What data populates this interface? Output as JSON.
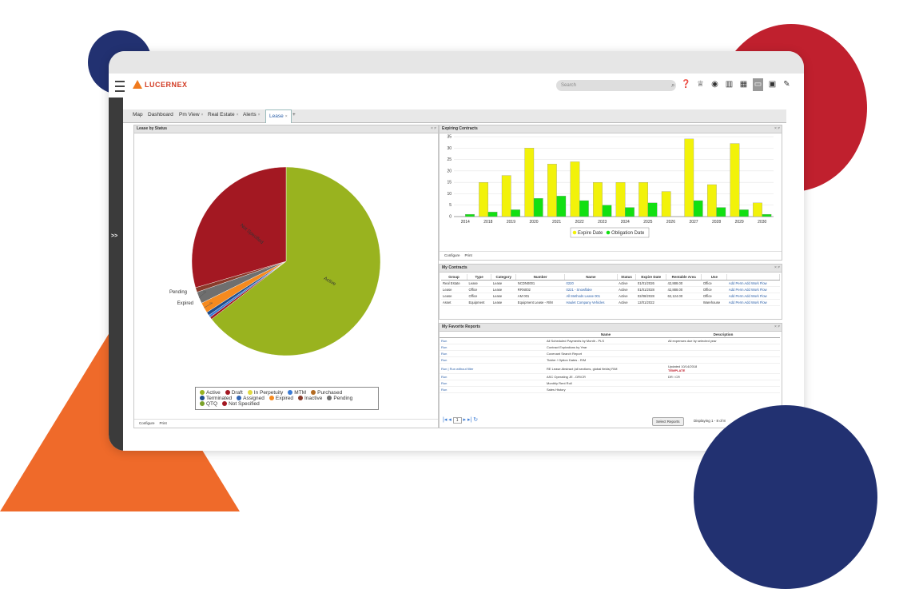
{
  "app": {
    "logo_text": "LUCERNEX",
    "search_placeholder": "Search",
    "top_letter": "L",
    "expand_label": ">>"
  },
  "tabs": [
    {
      "label": "Map"
    },
    {
      "label": "Dashboard"
    },
    {
      "label": "Pm View",
      "close": "×"
    },
    {
      "label": "Real Estate",
      "close": "×"
    },
    {
      "label": "Alerts",
      "close": "×"
    },
    {
      "label": "Lease",
      "close": "×"
    },
    {
      "label": "+"
    }
  ],
  "lease_by_status": {
    "title": "Lease by Status",
    "controls": "× ≠",
    "footer": {
      "configure": "Configure",
      "print": "Print"
    },
    "legend": [
      {
        "name": "Active",
        "color": "#99b31f"
      },
      {
        "name": "Draft",
        "color": "#a31822"
      },
      {
        "name": "In Perpetuity",
        "color": "#e0d940"
      },
      {
        "name": "MTM",
        "color": "#3a7bd5"
      },
      {
        "name": "Purchased",
        "color": "#b36b23"
      },
      {
        "name": "Terminated",
        "color": "#1f4e8c"
      },
      {
        "name": "Assigned",
        "color": "#3065b5"
      },
      {
        "name": "Expired",
        "color": "#f58a1f"
      },
      {
        "name": "Inactive",
        "color": "#8a3a2a"
      },
      {
        "name": "Pending",
        "color": "#6f6f6f"
      },
      {
        "name": "QTQ",
        "color": "#7aa12a"
      },
      {
        "name": "Not Specified",
        "color": "#a31822"
      }
    ],
    "slice_labels": {
      "active": "Active",
      "not_specified": "Not Specified",
      "pending": "Pending",
      "expired": "Expired"
    }
  },
  "chart_data": {
    "type": "pie",
    "title": "Lease by Status",
    "slices": [
      {
        "label": "Active",
        "value": 64.5,
        "color": "#99b31f"
      },
      {
        "label": "Draft",
        "value": 0.4,
        "color": "#a31822"
      },
      {
        "label": "MTM",
        "value": 0.4,
        "color": "#3a7bd5"
      },
      {
        "label": "Terminated",
        "value": 0.6,
        "color": "#1f4e8c"
      },
      {
        "label": "Expired",
        "value": 1.8,
        "color": "#f58a1f"
      },
      {
        "label": "Pending",
        "value": 2.0,
        "color": "#6f6f6f"
      },
      {
        "label": "Inactive",
        "value": 0.8,
        "color": "#8a3a2a"
      },
      {
        "label": "Not Specified",
        "value": 29.5,
        "color": "#a31822"
      }
    ]
  },
  "expiring_contracts": {
    "title": "Expiring Contracts",
    "controls": "× ≠",
    "footer": {
      "configure": "Configure",
      "print": "Print"
    },
    "chart": {
      "type": "bar",
      "categories": [
        "2014",
        "2018",
        "2019",
        "2020",
        "2021",
        "2022",
        "2023",
        "2024",
        "2025",
        "2026",
        "2027",
        "2028",
        "2029",
        "2030"
      ],
      "series": [
        {
          "name": "Expire Date",
          "color": "#f2f20a",
          "values": [
            0,
            15,
            18,
            30,
            23,
            24,
            15,
            15,
            15,
            11,
            34,
            14,
            32,
            6
          ]
        },
        {
          "name": "Obligation Date",
          "color": "#12e012",
          "values": [
            1,
            2,
            3,
            8,
            9,
            7,
            5,
            4,
            6,
            0,
            7,
            4,
            3,
            1
          ]
        }
      ],
      "yticks": [
        "0",
        "5",
        "10",
        "15",
        "20",
        "25",
        "30",
        "35"
      ],
      "ylim": [
        0,
        35
      ]
    }
  },
  "my_contracts": {
    "title": "My Contracts",
    "controls": "× ≠",
    "headers": [
      "Group",
      "Type",
      "Category",
      "Number",
      "Name",
      "Status",
      "Expire Date",
      "Rentable Area",
      "Use",
      ""
    ],
    "rows": [
      [
        "Real Estate",
        "Lease",
        "Lease",
        "NCDN0001",
        "0220",
        "Active",
        "01/01/2026",
        "42,888.00",
        "Office",
        "Add Perm Add Work Flow"
      ],
      [
        "Lease",
        "Office",
        "Lease",
        "RRN002",
        "0221 - Snowflake",
        "Active",
        "01/01/2028",
        "42,888.00",
        "Office",
        "Add Perm Add Work Flow"
      ],
      [
        "Lease",
        "Office",
        "Lease",
        "AM 001",
        "All Methods Lease 001",
        "Active",
        "02/08/2028",
        "62,124.00",
        "Office",
        "Add Perm Add Work Flow"
      ],
      [
        "Asset",
        "Equipment",
        "Lease",
        "Equipment Lease - R/M",
        "Haulet Company Vehicles",
        "Active",
        "12/01/2022",
        "",
        "Warehouse",
        "Add Perm Add Work Flow"
      ]
    ]
  },
  "favorite_reports": {
    "title": "My Favorite Reports",
    "controls": "× ≠",
    "headers": [
      "",
      "Name",
      "Description"
    ],
    "rows": [
      [
        "Run",
        "All Scheduled Payments by Month - PLS",
        "All expenses due by selected year"
      ],
      [
        "Run",
        "Contract Expirations by Year",
        ""
      ],
      [
        "Run",
        "Covenant Search Report",
        ""
      ],
      [
        "Run",
        "Tickler / Option Dates - R/M",
        ""
      ],
      [
        "Run | Run without filter",
        "RE Lease Abstract (all sections, global fields) R/M",
        "Updated 10/14/2018"
      ],
      [
        "Run",
        "ASC Operating JE - DR/CR",
        "DR / CR"
      ],
      [
        "Run",
        "Monthly Rent Roll",
        ""
      ],
      [
        "Run",
        "Sales History",
        ""
      ]
    ],
    "template_label": "TEMPLATE",
    "pager": {
      "page": "1",
      "select_reports": "Select Reports",
      "displaying": "Displaying 1 - 8 of 8"
    }
  }
}
